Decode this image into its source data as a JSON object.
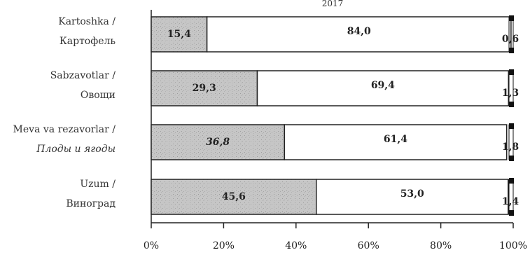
{
  "chart_data": {
    "type": "bar",
    "orientation": "horizontal",
    "stacked": true,
    "percent": true,
    "title": "2017",
    "categories": [
      "Kartoshka / Картофель",
      "Sabzavotlar / Овощи",
      "Meva va rezavorlar / Плоды и ягоды",
      "Uzum / Виноград"
    ],
    "category_lines": [
      [
        "Kartoshka /",
        "Картофель"
      ],
      [
        "Sabzavotlar /",
        "Овощи"
      ],
      [
        "Meva va rezavorlar /",
        "Плоды и ягоды"
      ],
      [
        "Uzum /",
        "Виноград"
      ]
    ],
    "series": [
      {
        "values": [
          15.4,
          29.3,
          36.8,
          45.6
        ],
        "labels": [
          "15,4",
          "29,3",
          "36,8",
          "45,6"
        ],
        "color": "#c8c8c8"
      },
      {
        "values": [
          84.0,
          69.4,
          61.4,
          53.0
        ],
        "labels": [
          "84,0",
          "69,4",
          "61,4",
          "53,0"
        ],
        "color": "#ffffff"
      },
      {
        "values": [
          0.6,
          1.3,
          1.8,
          1.4
        ],
        "labels": [
          "0,6",
          "1,3",
          "1,8",
          "1,4"
        ],
        "color": "#111111"
      }
    ],
    "xlim": [
      0,
      100
    ],
    "xticks": [
      "0%",
      "20%",
      "40%",
      "60%",
      "80%",
      "100%"
    ],
    "grid": false,
    "legend": "none"
  }
}
